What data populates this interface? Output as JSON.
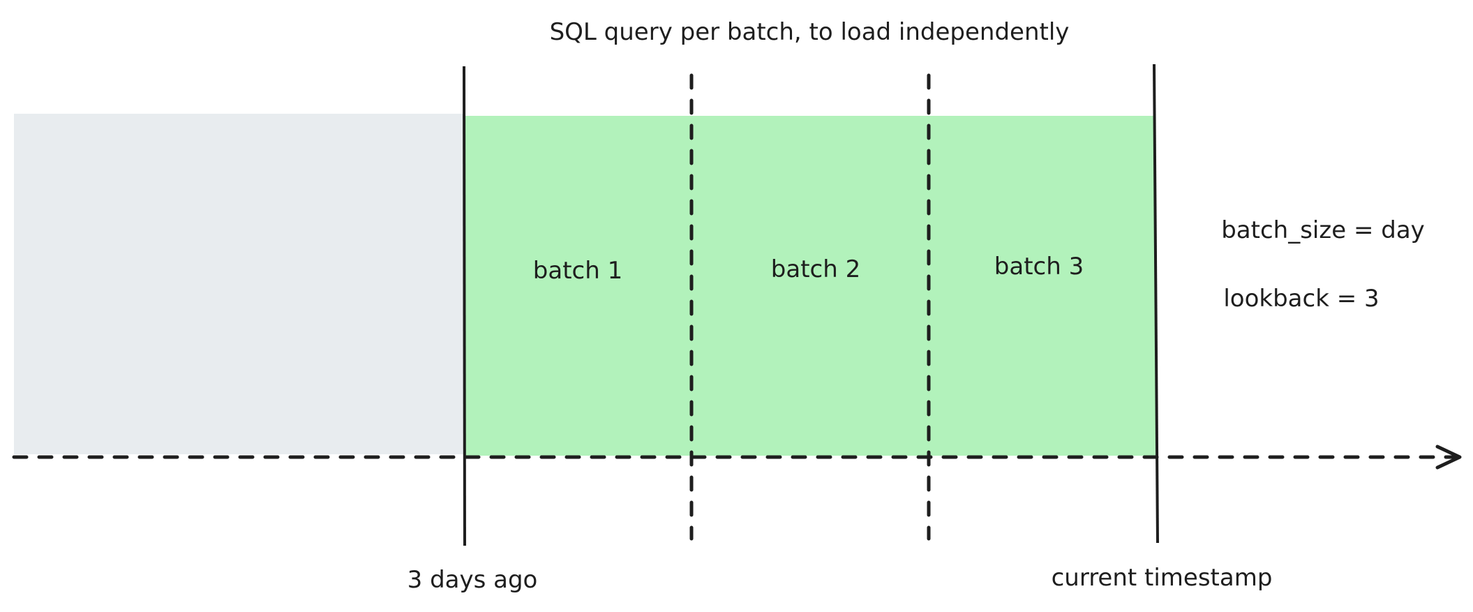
{
  "title": "SQL query per batch, to load independently",
  "batches": [
    {
      "label": "batch 1"
    },
    {
      "label": "batch 2"
    },
    {
      "label": "batch 3"
    }
  ],
  "markers": {
    "start": "3 days ago",
    "end": "current timestamp"
  },
  "params": {
    "batch_size": "batch_size = day",
    "lookback": "lookback = 3"
  },
  "colors": {
    "past_region": "#e8ecef",
    "batch_region": "#b2f2bb",
    "stroke": "#1e1e1e"
  }
}
